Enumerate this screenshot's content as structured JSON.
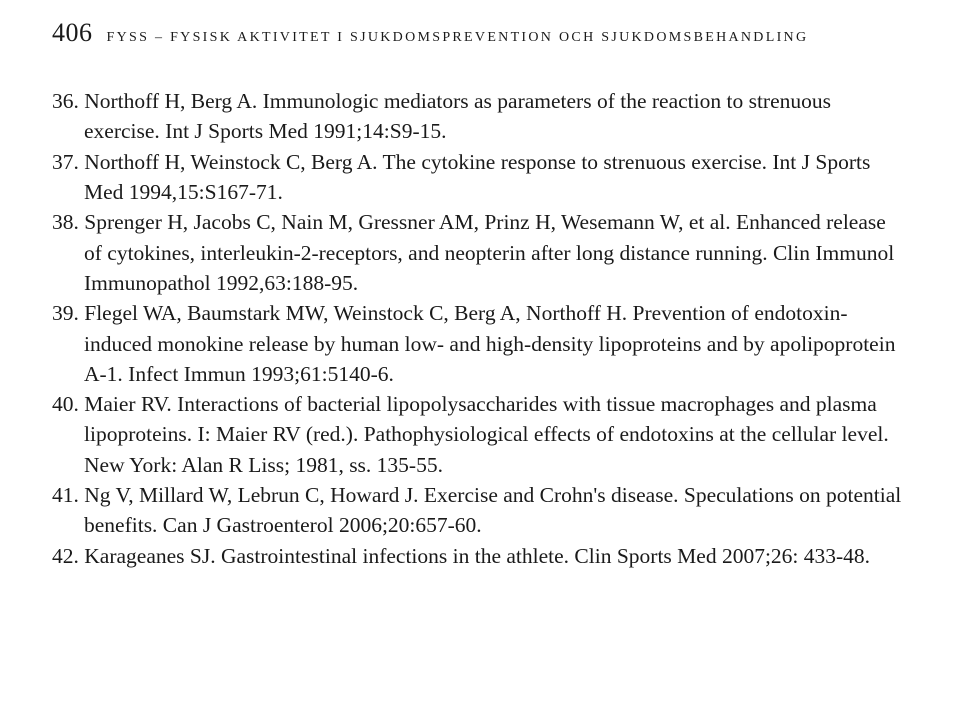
{
  "page_number": "406",
  "running_head_prefix": "FYSS",
  "running_head_rest": "– fysisk aktivitet i sjukdomsprevention och sjukdomsbehandling",
  "references": [
    {
      "num": "36.",
      "text": "Northoff H, Berg A. Immunologic mediators as parameters of the reaction to strenuous exercise. Int J Sports Med 1991;14:S9-15."
    },
    {
      "num": "37.",
      "text": "Northoff H, Weinstock C, Berg A. The cytokine response to strenuous exercise. Int J Sports Med 1994,15:S167-71."
    },
    {
      "num": "38.",
      "text": "Sprenger H, Jacobs C, Nain M, Gressner AM, Prinz H, Wesemann W, et al. Enhanced release of cytokines, interleukin-2-receptors, and neopterin after long distance running. Clin Immunol Immunopathol 1992,63:188-95."
    },
    {
      "num": "39.",
      "text": "Flegel WA, Baumstark MW, Weinstock C, Berg A, Northoff H. Prevention of endotoxin-induced monokine release by human low- and high-density lipoproteins and by apolipoprotein A-1. Infect Immun 1993;61:5140-6."
    },
    {
      "num": "40.",
      "text": "Maier RV. Interactions of bacterial lipopolysaccharides with tissue macrophages and plasma lipoproteins. I: Maier RV (red.). Pathophysiological effects of endotoxins at the cellular level. New York: Alan R Liss; 1981, ss. 135-55."
    },
    {
      "num": "41.",
      "text": "Ng V, Millard W, Lebrun C, Howard J. Exercise and Crohn's disease. Speculations on potential benefits. Can J Gastroenterol 2006;20:657-60."
    },
    {
      "num": "42.",
      "text": "Karageanes SJ. Gastrointestinal infections in the athlete. Clin Sports Med 2007;26: 433-48."
    }
  ],
  "colors": {
    "background": "#ffffff",
    "text": "#1a1a1a"
  }
}
